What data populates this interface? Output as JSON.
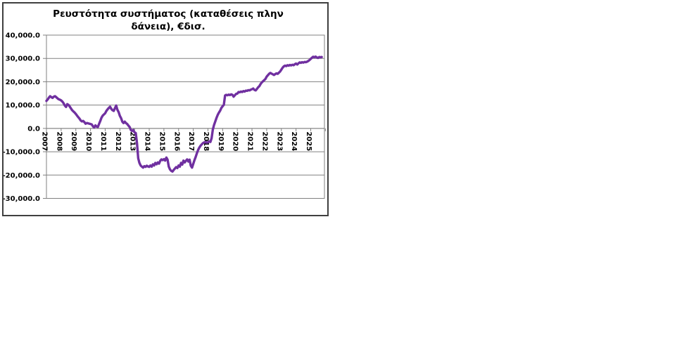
{
  "chart": {
    "title": "Ρευστότητα συστήματος (καταθέσεις πλην δάνεια), €δισ.",
    "background": "#ffffff",
    "border_color": "#3f3f3f"
  },
  "chart_data": {
    "type": "line",
    "title": "Ρευστότητα συστήματος (καταθέσεις πλην δάνεια), €δισ.",
    "xlabel": "",
    "ylabel": "",
    "ylim": [
      -30000,
      40000
    ],
    "grid": true,
    "gridline_color": "#808080",
    "axis_color": "#808080",
    "x_label_rotation_deg": 90,
    "y_ticks": [
      40000,
      30000,
      20000,
      10000,
      0,
      -10000,
      -20000,
      -30000
    ],
    "y_tick_labels": [
      "40,000.0",
      "30,000.0",
      "20,000.0",
      "10,000.0",
      "0.0",
      "-10,000.0",
      "-20,000.0",
      "-30,000.0"
    ],
    "x_tick_labels": [
      "2007",
      "2008",
      "2009",
      "2010",
      "2011",
      "2012",
      "2013",
      "2014",
      "2015",
      "2016",
      "2017",
      "2018",
      "2019",
      "2020",
      "2021",
      "2022",
      "2023",
      "2024",
      "2025"
    ],
    "frequency": "monthly",
    "start": "2007-01",
    "legend": "none",
    "series": [
      {
        "name": "Ρευστότητα συστήματος (καταθέσεις πλην δάνεια)",
        "color": "#7030A0",
        "values": [
          11800,
          12400,
          13200,
          13800,
          13400,
          13100,
          13600,
          13800,
          13400,
          12900,
          12500,
          12300,
          12000,
          11500,
          10800,
          9800,
          9200,
          10400,
          10100,
          9400,
          8600,
          7800,
          7300,
          6800,
          6200,
          5500,
          4800,
          4200,
          3400,
          3000,
          3200,
          2700,
          2000,
          2300,
          2200,
          2000,
          1900,
          1700,
          900,
          400,
          1300,
          800,
          600,
          1900,
          3200,
          4600,
          5500,
          6000,
          6500,
          7500,
          8200,
          8800,
          9300,
          8400,
          7800,
          7500,
          8700,
          9800,
          8000,
          7000,
          5400,
          4400,
          2900,
          2300,
          2900,
          2300,
          1900,
          1200,
          600,
          -700,
          -1100,
          -700,
          -1700,
          -2000,
          -6300,
          -12800,
          -14800,
          -15900,
          -16400,
          -16800,
          -16200,
          -16500,
          -16000,
          -16300,
          -16500,
          -15900,
          -16400,
          -15400,
          -15900,
          -14800,
          -15400,
          -14600,
          -15100,
          -13900,
          -13300,
          -13600,
          -13200,
          -13800,
          -12500,
          -13400,
          -16400,
          -17600,
          -18200,
          -18500,
          -17800,
          -17200,
          -16600,
          -17000,
          -15900,
          -16400,
          -14800,
          -15500,
          -13800,
          -14600,
          -13900,
          -13300,
          -14200,
          -13400,
          -16000,
          -16800,
          -15200,
          -13600,
          -12200,
          -10600,
          -9200,
          -8200,
          -7400,
          -6800,
          -6300,
          -6000,
          -5800,
          -6100,
          -6000,
          -5600,
          -5800,
          -4200,
          -500,
          1500,
          3000,
          4500,
          5800,
          6800,
          7600,
          8800,
          9500,
          10100,
          14100,
          14400,
          14200,
          14500,
          14300,
          14600,
          14400,
          13600,
          14200,
          14800,
          14900,
          15600,
          15500,
          15800,
          15600,
          16000,
          15800,
          16200,
          16100,
          16400,
          16300,
          16600,
          16800,
          17100,
          16500,
          16300,
          16900,
          17600,
          18100,
          19000,
          19700,
          20200,
          20700,
          21200,
          22200,
          22800,
          23400,
          23800,
          23500,
          23200,
          22900,
          23300,
          23600,
          23400,
          23900,
          24400,
          25200,
          26000,
          26600,
          26900,
          26700,
          27100,
          26900,
          27200,
          27000,
          27300,
          27100,
          27500,
          27800,
          27400,
          27900,
          28300,
          28100,
          28400,
          28200,
          28500,
          28400,
          28600,
          28900,
          29300,
          29800,
          30300,
          30700,
          30500,
          30800,
          30400,
          30200,
          30600,
          30500,
          30600
        ]
      }
    ]
  }
}
